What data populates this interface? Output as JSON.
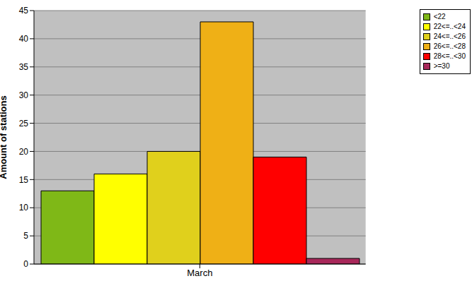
{
  "chart_data": {
    "type": "bar",
    "categories": [
      "March"
    ],
    "ylabel": "Amount of stations",
    "ylim": [
      0,
      45
    ],
    "yticks": [
      0,
      5,
      10,
      15,
      20,
      25,
      30,
      35,
      40,
      45
    ],
    "grid": true,
    "legend": "top right",
    "series": [
      {
        "name": "<22",
        "color": "#7fb817",
        "values": [
          13
        ]
      },
      {
        "name": "22<=..<24",
        "color": "#ffff00",
        "values": [
          16
        ]
      },
      {
        "name": "24<=..<26",
        "color": "#e0d01c",
        "values": [
          20
        ]
      },
      {
        "name": "26<=..<28",
        "color": "#efb016",
        "values": [
          43
        ]
      },
      {
        "name": "28<=..<30",
        "color": "#ff0000",
        "values": [
          19
        ]
      },
      {
        "name": ">=30",
        "color": "#a8285a",
        "values": [
          1
        ]
      }
    ]
  }
}
